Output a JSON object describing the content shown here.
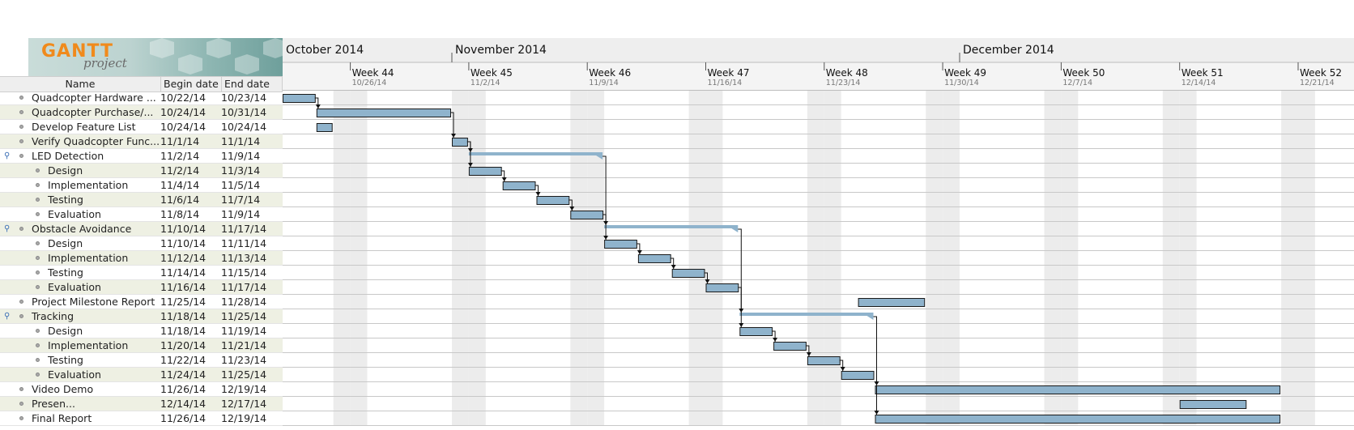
{
  "logo": {
    "word": "GANTT",
    "sub": "project"
  },
  "table": {
    "headers": {
      "name": "Name",
      "begin": "Begin date",
      "end": "End date"
    },
    "rows": [
      {
        "name": "Quadcopter Hardware ...",
        "begin": "10/22/14",
        "end": "10/23/14",
        "level": 0,
        "group": false
      },
      {
        "name": "Quadcopter Purchase/...",
        "begin": "10/24/14",
        "end": "10/31/14",
        "level": 0,
        "group": false
      },
      {
        "name": "Develop Feature List",
        "begin": "10/24/14",
        "end": "10/24/14",
        "level": 0,
        "group": false
      },
      {
        "name": "Verify Quadcopter Func...",
        "begin": "11/1/14",
        "end": "11/1/14",
        "level": 0,
        "group": false
      },
      {
        "name": "LED Detection",
        "begin": "11/2/14",
        "end": "11/9/14",
        "level": 0,
        "group": true
      },
      {
        "name": "Design",
        "begin": "11/2/14",
        "end": "11/3/14",
        "level": 1,
        "group": false
      },
      {
        "name": "Implementation",
        "begin": "11/4/14",
        "end": "11/5/14",
        "level": 1,
        "group": false
      },
      {
        "name": "Testing",
        "begin": "11/6/14",
        "end": "11/7/14",
        "level": 1,
        "group": false
      },
      {
        "name": "Evaluation",
        "begin": "11/8/14",
        "end": "11/9/14",
        "level": 1,
        "group": false
      },
      {
        "name": "Obstacle Avoidance",
        "begin": "11/10/14",
        "end": "11/17/14",
        "level": 0,
        "group": true
      },
      {
        "name": "Design",
        "begin": "11/10/14",
        "end": "11/11/14",
        "level": 1,
        "group": false
      },
      {
        "name": "Implementation",
        "begin": "11/12/14",
        "end": "11/13/14",
        "level": 1,
        "group": false
      },
      {
        "name": "Testing",
        "begin": "11/14/14",
        "end": "11/15/14",
        "level": 1,
        "group": false
      },
      {
        "name": "Evaluation",
        "begin": "11/16/14",
        "end": "11/17/14",
        "level": 1,
        "group": false
      },
      {
        "name": "Project Milestone Report",
        "begin": "11/25/14",
        "end": "11/28/14",
        "level": 0,
        "group": false
      },
      {
        "name": "Tracking",
        "begin": "11/18/14",
        "end": "11/25/14",
        "level": 0,
        "group": true
      },
      {
        "name": "Design",
        "begin": "11/18/14",
        "end": "11/19/14",
        "level": 1,
        "group": false
      },
      {
        "name": "Implementation",
        "begin": "11/20/14",
        "end": "11/21/14",
        "level": 1,
        "group": false
      },
      {
        "name": "Testing",
        "begin": "11/22/14",
        "end": "11/23/14",
        "level": 1,
        "group": false
      },
      {
        "name": "Evaluation",
        "begin": "11/24/14",
        "end": "11/25/14",
        "level": 1,
        "group": false
      },
      {
        "name": "Video Demo",
        "begin": "11/26/14",
        "end": "12/19/14",
        "level": 0,
        "group": false
      },
      {
        "name": "Presen...",
        "begin": "12/14/14",
        "end": "12/17/14",
        "level": 0,
        "group": false
      },
      {
        "name": "Final Report",
        "begin": "11/26/14",
        "end": "12/19/14",
        "level": 0,
        "group": false
      }
    ]
  },
  "timeline": {
    "months": [
      {
        "label": "October 2014",
        "date": "2014-10-22"
      },
      {
        "label": "November 2014",
        "date": "2014-11-01"
      },
      {
        "label": "December 2014",
        "date": "2014-12-01"
      }
    ],
    "weeks": [
      {
        "label": "Week 44",
        "sub": "10/26/14",
        "date": "2014-10-26"
      },
      {
        "label": "Week 45",
        "sub": "11/2/14",
        "date": "2014-11-02"
      },
      {
        "label": "Week 46",
        "sub": "11/9/14",
        "date": "2014-11-09"
      },
      {
        "label": "Week 47",
        "sub": "11/16/14",
        "date": "2014-11-16"
      },
      {
        "label": "Week 48",
        "sub": "11/23/14",
        "date": "2014-11-23"
      },
      {
        "label": "Week 49",
        "sub": "11/30/14",
        "date": "2014-11-30"
      },
      {
        "label": "Week 50",
        "sub": "12/7/14",
        "date": "2014-12-07"
      },
      {
        "label": "Week 51",
        "sub": "12/14/14",
        "date": "2014-12-14"
      },
      {
        "label": "Week 52",
        "sub": "12/21/14",
        "date": "2014-12-21"
      }
    ],
    "start_date": "2014-10-22",
    "end_date": "2014-12-22"
  },
  "dependencies": [
    [
      0,
      1
    ],
    [
      1,
      3
    ],
    [
      3,
      4
    ],
    [
      3,
      5
    ],
    [
      5,
      6
    ],
    [
      6,
      7
    ],
    [
      7,
      8
    ],
    [
      4,
      9
    ],
    [
      8,
      10
    ],
    [
      10,
      11
    ],
    [
      11,
      12
    ],
    [
      12,
      13
    ],
    [
      9,
      15
    ],
    [
      13,
      16
    ],
    [
      16,
      17
    ],
    [
      17,
      18
    ],
    [
      18,
      19
    ],
    [
      15,
      20
    ],
    [
      15,
      22
    ]
  ],
  "colors": {
    "bar_fill": "#8fb3cc",
    "bar_stroke": "#1a1a1a",
    "group_bar": "#8fb3cc",
    "weekend_shade": "#ececec",
    "row_alt": "#eef0e3",
    "grid_line": "#c8c8c8",
    "header_bg": "#eeeeee"
  }
}
